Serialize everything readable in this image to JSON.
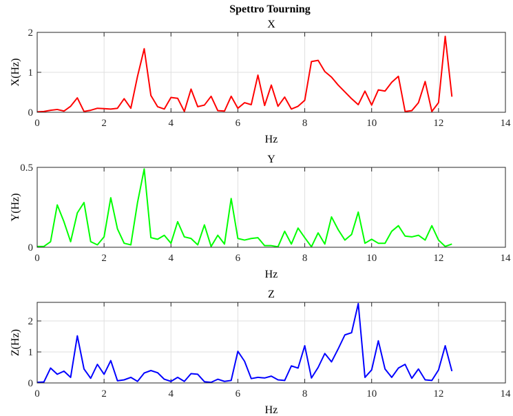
{
  "figure": {
    "title": "Spettro Tourning"
  },
  "chart_data": [
    {
      "type": "line",
      "title": "X",
      "xlabel": "Hz",
      "ylabel": "X(Hz)",
      "xlim": [
        0,
        14
      ],
      "ylim": [
        0,
        2
      ],
      "xticks": [
        "0",
        "2",
        "4",
        "6",
        "8",
        "10",
        "12",
        "14"
      ],
      "yticks": [
        "0",
        "1",
        "2"
      ],
      "grid": true,
      "color": "#ff0000",
      "x": [
        0,
        0.2,
        0.4,
        0.6,
        0.8,
        1.0,
        1.2,
        1.4,
        1.6,
        1.8,
        2.0,
        2.2,
        2.4,
        2.6,
        2.8,
        3.0,
        3.2,
        3.4,
        3.6,
        3.8,
        4.0,
        4.2,
        4.4,
        4.6,
        4.8,
        5.0,
        5.2,
        5.4,
        5.6,
        5.8,
        6.0,
        6.2,
        6.4,
        6.6,
        6.8,
        7.0,
        7.2,
        7.4,
        7.6,
        7.8,
        8.0,
        8.2,
        8.4,
        8.6,
        8.8,
        9.0,
        9.2,
        9.4,
        9.6,
        9.8,
        10.0,
        10.2,
        10.4,
        10.6,
        10.8,
        11.0,
        11.2,
        11.4,
        11.6,
        11.8,
        12.0,
        12.2,
        12.4
      ],
      "y": [
        0.01,
        0.02,
        0.05,
        0.07,
        0.03,
        0.15,
        0.36,
        0.02,
        0.05,
        0.1,
        0.09,
        0.08,
        0.1,
        0.34,
        0.1,
        0.9,
        1.59,
        0.42,
        0.14,
        0.08,
        0.37,
        0.35,
        0.02,
        0.58,
        0.14,
        0.18,
        0.4,
        0.04,
        0.03,
        0.4,
        0.1,
        0.24,
        0.19,
        0.93,
        0.17,
        0.68,
        0.15,
        0.38,
        0.08,
        0.15,
        0.3,
        1.27,
        1.3,
        1.02,
        0.88,
        0.68,
        0.51,
        0.34,
        0.19,
        0.53,
        0.18,
        0.56,
        0.53,
        0.75,
        0.9,
        0.02,
        0.04,
        0.24,
        0.77,
        0.02,
        0.24,
        1.9,
        0.39
      ]
    },
    {
      "type": "line",
      "title": "Y",
      "xlabel": "Hz",
      "ylabel": "Y(Hz)",
      "xlim": [
        0,
        14
      ],
      "ylim": [
        0,
        0.5
      ],
      "xticks": [
        "0",
        "2",
        "4",
        "6",
        "8",
        "10",
        "12",
        "14"
      ],
      "yticks": [
        "0",
        "0.5"
      ],
      "grid": true,
      "color": "#00ff00",
      "x": [
        0,
        0.2,
        0.4,
        0.6,
        0.8,
        1.0,
        1.2,
        1.4,
        1.6,
        1.8,
        2.0,
        2.2,
        2.4,
        2.6,
        2.8,
        3.0,
        3.2,
        3.4,
        3.6,
        3.8,
        4.0,
        4.2,
        4.4,
        4.6,
        4.8,
        5.0,
        5.2,
        5.4,
        5.6,
        5.8,
        6.0,
        6.2,
        6.4,
        6.6,
        6.8,
        7.0,
        7.2,
        7.4,
        7.6,
        7.8,
        8.0,
        8.2,
        8.4,
        8.6,
        8.8,
        9.0,
        9.2,
        9.4,
        9.6,
        9.8,
        10.0,
        10.2,
        10.4,
        10.6,
        10.8,
        11.0,
        11.2,
        11.4,
        11.6,
        11.8,
        12.0,
        12.2,
        12.4
      ],
      "y": [
        0.005,
        0.005,
        0.035,
        0.265,
        0.16,
        0.035,
        0.215,
        0.28,
        0.035,
        0.015,
        0.065,
        0.31,
        0.115,
        0.025,
        0.015,
        0.28,
        0.49,
        0.06,
        0.05,
        0.075,
        0.025,
        0.16,
        0.065,
        0.055,
        0.015,
        0.14,
        0.005,
        0.075,
        0.02,
        0.305,
        0.055,
        0.045,
        0.055,
        0.06,
        0.01,
        0.01,
        0.003,
        0.1,
        0.02,
        0.12,
        0.06,
        0.003,
        0.09,
        0.02,
        0.19,
        0.11,
        0.045,
        0.08,
        0.22,
        0.025,
        0.05,
        0.025,
        0.025,
        0.1,
        0.135,
        0.07,
        0.065,
        0.075,
        0.045,
        0.135,
        0.045,
        0.005,
        0.02
      ]
    },
    {
      "type": "line",
      "title": "Z",
      "xlabel": "Hz",
      "ylabel": "Z(Hz)",
      "xlim": [
        0,
        14
      ],
      "ylim": [
        0,
        2.6
      ],
      "xticks": [
        "0",
        "2",
        "4",
        "6",
        "8",
        "10",
        "12",
        "14"
      ],
      "yticks": [
        "0",
        "1",
        "2"
      ],
      "grid": true,
      "color": "#0000ff",
      "x": [
        0,
        0.2,
        0.4,
        0.6,
        0.8,
        1.0,
        1.2,
        1.4,
        1.6,
        1.8,
        2.0,
        2.2,
        2.4,
        2.6,
        2.8,
        3.0,
        3.2,
        3.4,
        3.6,
        3.8,
        4.0,
        4.2,
        4.4,
        4.6,
        4.8,
        5.0,
        5.2,
        5.4,
        5.6,
        5.8,
        6.0,
        6.2,
        6.4,
        6.6,
        6.8,
        7.0,
        7.2,
        7.4,
        7.6,
        7.8,
        8.0,
        8.2,
        8.4,
        8.6,
        8.8,
        9.0,
        9.2,
        9.4,
        9.6,
        9.8,
        10.0,
        10.2,
        10.4,
        10.6,
        10.8,
        11.0,
        11.2,
        11.4,
        11.6,
        11.8,
        12.0,
        12.2,
        12.4
      ],
      "y": [
        0.02,
        0.03,
        0.48,
        0.28,
        0.38,
        0.18,
        1.52,
        0.45,
        0.15,
        0.6,
        0.28,
        0.72,
        0.07,
        0.1,
        0.18,
        0.05,
        0.32,
        0.4,
        0.33,
        0.12,
        0.05,
        0.18,
        0.05,
        0.3,
        0.28,
        0.04,
        0.02,
        0.12,
        0.05,
        0.08,
        1.02,
        0.7,
        0.14,
        0.18,
        0.16,
        0.22,
        0.1,
        0.08,
        0.55,
        0.48,
        1.2,
        0.16,
        0.5,
        0.95,
        0.68,
        1.1,
        1.55,
        1.62,
        2.56,
        0.18,
        0.42,
        1.36,
        0.45,
        0.18,
        0.48,
        0.6,
        0.15,
        0.45,
        0.1,
        0.08,
        0.42,
        1.2,
        0.38
      ]
    }
  ]
}
